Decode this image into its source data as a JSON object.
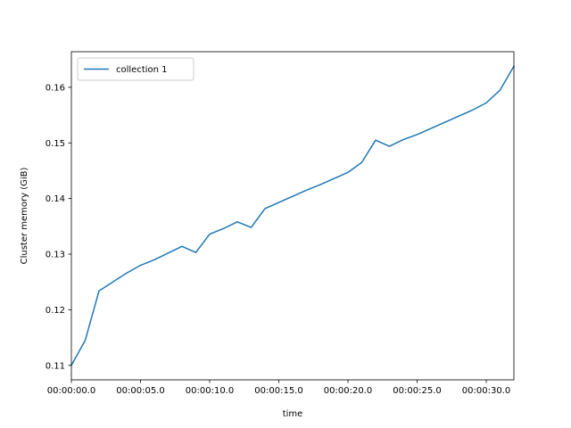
{
  "chart_data": {
    "type": "line",
    "title": "",
    "xlabel": "time",
    "ylabel": "Cluster memory (GiB)",
    "x_unit": "seconds",
    "xlim": [
      0,
      32
    ],
    "ylim": [
      0.1074,
      0.1664
    ],
    "x_ticks": [
      {
        "value": 0,
        "label": "00:00:00.0"
      },
      {
        "value": 5,
        "label": "00:00:05.0"
      },
      {
        "value": 10,
        "label": "00:00:10.0"
      },
      {
        "value": 15,
        "label": "00:00:15.0"
      },
      {
        "value": 20,
        "label": "00:00:20.0"
      },
      {
        "value": 25,
        "label": "00:00:25.0"
      },
      {
        "value": 30,
        "label": "00:00:30.0"
      }
    ],
    "y_ticks": [
      {
        "value": 0.11,
        "label": "0.11"
      },
      {
        "value": 0.12,
        "label": "0.12"
      },
      {
        "value": 0.13,
        "label": "0.13"
      },
      {
        "value": 0.14,
        "label": "0.14"
      },
      {
        "value": 0.15,
        "label": "0.15"
      },
      {
        "value": 0.16,
        "label": "0.16"
      }
    ],
    "grid": false,
    "legend_position": "top-left",
    "series": [
      {
        "name": "collection 1",
        "color": "#1f77b4",
        "x": [
          0,
          1,
          2,
          3,
          4,
          5,
          6,
          7,
          8,
          9,
          10,
          11,
          12,
          13,
          14,
          15,
          16,
          17,
          18,
          19,
          20,
          21,
          22,
          23,
          24,
          25,
          26,
          27,
          28,
          29,
          30,
          31,
          32
        ],
        "y": [
          0.11,
          0.1145,
          0.1234,
          0.125,
          0.1266,
          0.128,
          0.129,
          0.1302,
          0.1314,
          0.1303,
          0.1336,
          0.1346,
          0.1358,
          0.1348,
          0.1382,
          0.1393,
          0.1404,
          0.1415,
          0.1425,
          0.1436,
          0.1447,
          0.1465,
          0.1505,
          0.1494,
          0.1506,
          0.1515,
          0.1526,
          0.1537,
          0.1548,
          0.1559,
          0.1572,
          0.1595,
          0.1638
        ]
      }
    ]
  }
}
